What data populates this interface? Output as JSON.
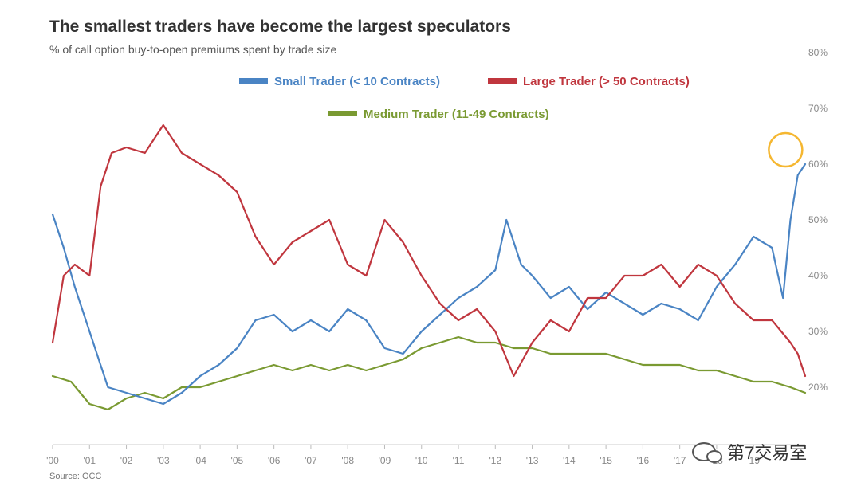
{
  "chart_data": {
    "type": "line",
    "title": "The smallest traders have become the largest speculators",
    "subtitle": "% of call option buy-to-open premiums spent by trade size",
    "source": "Source: OCC",
    "x_tick_labels": [
      "'00",
      "'01",
      "'02",
      "'03",
      "'04",
      "'05",
      "'06",
      "'07",
      "'08",
      "'09",
      "'10",
      "'11",
      "'12",
      "'13",
      "'14",
      "'15",
      "'16",
      "'17",
      "'18",
      "'19"
    ],
    "x_years": [
      2000,
      2001,
      2002,
      2003,
      2004,
      2005,
      2006,
      2007,
      2008,
      2009,
      2010,
      2011,
      2012,
      2013,
      2014,
      2015,
      2016,
      2017,
      2018,
      2019
    ],
    "xlim": [
      2000.0,
      2020.4
    ],
    "ylim": [
      10,
      80
    ],
    "y_ticks": [
      20,
      30,
      40,
      50,
      60,
      70,
      80
    ],
    "y_tick_labels": [
      "20%",
      "30%",
      "40%",
      "50%",
      "60%",
      "70%",
      "80%"
    ],
    "y_axis_side": "right",
    "grid": false,
    "legend_placement": "top-center",
    "highlight": {
      "x": 2020.3,
      "y": 60,
      "color": "#f5b731",
      "shape": "circle"
    },
    "series": [
      {
        "name": "Small Trader (< 10 Contracts)",
        "color": "#4a84c4",
        "x": [
          2000.0,
          2000.3,
          2000.6,
          2001.0,
          2001.5,
          2002.0,
          2002.5,
          2003.0,
          2003.5,
          2004.0,
          2004.5,
          2005.0,
          2005.5,
          2006.0,
          2006.5,
          2007.0,
          2007.5,
          2008.0,
          2008.5,
          2009.0,
          2009.5,
          2010.0,
          2010.5,
          2011.0,
          2011.5,
          2012.0,
          2012.3,
          2012.7,
          2013.0,
          2013.5,
          2014.0,
          2014.5,
          2015.0,
          2015.5,
          2016.0,
          2016.5,
          2017.0,
          2017.5,
          2018.0,
          2018.5,
          2019.0,
          2019.5,
          2019.8,
          2020.0,
          2020.2,
          2020.4
        ],
        "values": [
          51,
          45,
          38,
          30,
          20,
          19,
          18,
          17,
          19,
          22,
          24,
          27,
          32,
          33,
          30,
          32,
          30,
          34,
          32,
          27,
          26,
          30,
          33,
          36,
          38,
          41,
          50,
          42,
          40,
          36,
          38,
          34,
          37,
          35,
          33,
          35,
          34,
          32,
          38,
          42,
          47,
          45,
          36,
          50,
          58,
          60
        ]
      },
      {
        "name": "Large Trader (> 50 Contracts)",
        "color": "#c0363e",
        "x": [
          2000.0,
          2000.3,
          2000.6,
          2001.0,
          2001.3,
          2001.6,
          2002.0,
          2002.5,
          2003.0,
          2003.5,
          2004.0,
          2004.5,
          2005.0,
          2005.5,
          2006.0,
          2006.5,
          2007.0,
          2007.5,
          2008.0,
          2008.5,
          2009.0,
          2009.5,
          2010.0,
          2010.5,
          2011.0,
          2011.5,
          2012.0,
          2012.5,
          2013.0,
          2013.5,
          2014.0,
          2014.5,
          2015.0,
          2015.5,
          2016.0,
          2016.5,
          2017.0,
          2017.5,
          2018.0,
          2018.5,
          2019.0,
          2019.5,
          2020.0,
          2020.2,
          2020.4
        ],
        "values": [
          28,
          40,
          42,
          40,
          56,
          62,
          63,
          62,
          67,
          62,
          60,
          58,
          55,
          47,
          42,
          46,
          48,
          50,
          42,
          40,
          50,
          46,
          40,
          35,
          32,
          34,
          30,
          22,
          28,
          32,
          30,
          36,
          36,
          40,
          40,
          42,
          38,
          42,
          40,
          35,
          32,
          32,
          28,
          26,
          22
        ]
      },
      {
        "name": "Medium Trader (11-49  Contracts)",
        "color": "#7a9a32",
        "x": [
          2000.0,
          2000.5,
          2001.0,
          2001.5,
          2002.0,
          2002.5,
          2003.0,
          2003.5,
          2004.0,
          2004.5,
          2005.0,
          2005.5,
          2006.0,
          2006.5,
          2007.0,
          2007.5,
          2008.0,
          2008.5,
          2009.0,
          2009.5,
          2010.0,
          2010.5,
          2011.0,
          2011.5,
          2012.0,
          2012.5,
          2013.0,
          2013.5,
          2014.0,
          2014.5,
          2015.0,
          2015.5,
          2016.0,
          2016.5,
          2017.0,
          2017.5,
          2018.0,
          2018.5,
          2019.0,
          2019.5,
          2020.0,
          2020.4
        ],
        "values": [
          22,
          21,
          17,
          16,
          18,
          19,
          18,
          20,
          20,
          21,
          22,
          23,
          24,
          23,
          24,
          23,
          24,
          23,
          24,
          25,
          27,
          28,
          29,
          28,
          28,
          27,
          27,
          26,
          26,
          26,
          26,
          25,
          24,
          24,
          24,
          23,
          23,
          22,
          21,
          21,
          20,
          19
        ]
      }
    ]
  },
  "watermark": {
    "text": "第7交易室"
  }
}
